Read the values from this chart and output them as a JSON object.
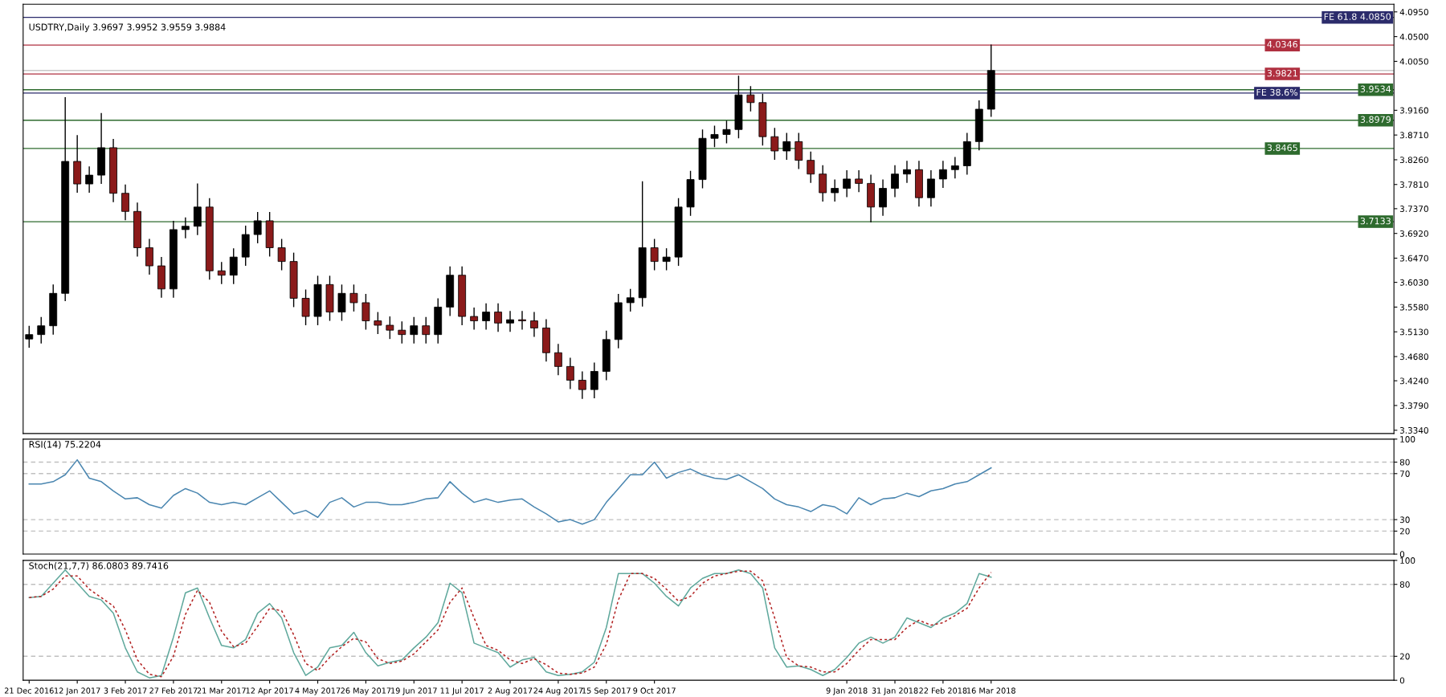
{
  "chart_data": [
    {
      "type": "candlestick",
      "title": "USDTRY,Daily 3.9697 3.9952 3.9559 3.9884",
      "tick_labels": "y",
      "categories": [
        null,
        null,
        null,
        null,
        null,
        null,
        null,
        null,
        null,
        null,
        null,
        null,
        null,
        null,
        null,
        null,
        null,
        null,
        null,
        null,
        null,
        null,
        null,
        null,
        null,
        null,
        null,
        null,
        null,
        null,
        null,
        null,
        null,
        null,
        null,
        null,
        null,
        null,
        null,
        null,
        null,
        null,
        null,
        null,
        null,
        null,
        null,
        null,
        null,
        null,
        null,
        null,
        null,
        null,
        null,
        null,
        null,
        null,
        null,
        null,
        null,
        null,
        null,
        null,
        null,
        null,
        null,
        null,
        null,
        null,
        null,
        null,
        null,
        null,
        null,
        null,
        null,
        null,
        null,
        null,
        null,
        null,
        null,
        null,
        null,
        null,
        null,
        null,
        null,
        null,
        null,
        null,
        null,
        null,
        null,
        null,
        null,
        null,
        null,
        null,
        null,
        null,
        null,
        null,
        null,
        null,
        null,
        null,
        null,
        null,
        null,
        null,
        null,
        null
      ],
      "ohlc": [
        [
          3.5,
          3.523,
          3.485,
          3.508
        ],
        [
          3.508,
          3.539,
          3.493,
          3.524
        ],
        [
          3.524,
          3.598,
          3.509,
          3.583
        ],
        [
          3.583,
          3.939,
          3.57,
          3.823
        ],
        [
          3.823,
          3.87,
          3.767,
          3.782
        ],
        [
          3.782,
          3.813,
          3.767,
          3.798
        ],
        [
          3.798,
          3.91,
          3.783,
          3.848
        ],
        [
          3.848,
          3.863,
          3.75,
          3.765
        ],
        [
          3.765,
          3.78,
          3.717,
          3.732
        ],
        [
          3.732,
          3.747,
          3.651,
          3.666
        ],
        [
          3.666,
          3.681,
          3.618,
          3.633
        ],
        [
          3.633,
          3.648,
          3.576,
          3.591
        ],
        [
          3.591,
          3.714,
          3.576,
          3.699
        ],
        [
          3.699,
          3.72,
          3.684,
          3.705
        ],
        [
          3.705,
          3.782,
          3.69,
          3.74
        ],
        [
          3.74,
          3.755,
          3.609,
          3.624
        ],
        [
          3.624,
          3.639,
          3.601,
          3.616
        ],
        [
          3.616,
          3.664,
          3.601,
          3.649
        ],
        [
          3.649,
          3.705,
          3.634,
          3.69
        ],
        [
          3.69,
          3.73,
          3.675,
          3.715
        ],
        [
          3.715,
          3.73,
          3.651,
          3.666
        ],
        [
          3.666,
          3.681,
          3.626,
          3.641
        ],
        [
          3.641,
          3.656,
          3.559,
          3.574
        ],
        [
          3.574,
          3.589,
          3.526,
          3.541
        ],
        [
          3.541,
          3.614,
          3.526,
          3.599
        ],
        [
          3.599,
          3.614,
          3.534,
          3.549
        ],
        [
          3.549,
          3.598,
          3.534,
          3.583
        ],
        [
          3.583,
          3.598,
          3.551,
          3.566
        ],
        [
          3.566,
          3.581,
          3.518,
          3.533
        ],
        [
          3.533,
          3.548,
          3.51,
          3.525
        ],
        [
          3.525,
          3.54,
          3.501,
          3.516
        ],
        [
          3.516,
          3.531,
          3.493,
          3.508
        ],
        [
          3.508,
          3.539,
          3.493,
          3.524
        ],
        [
          3.524,
          3.539,
          3.493,
          3.508
        ],
        [
          3.508,
          3.573,
          3.493,
          3.558
        ],
        [
          3.558,
          3.631,
          3.543,
          3.616
        ],
        [
          3.616,
          3.631,
          3.526,
          3.541
        ],
        [
          3.541,
          3.556,
          3.518,
          3.533
        ],
        [
          3.533,
          3.564,
          3.518,
          3.549
        ],
        [
          3.549,
          3.564,
          3.514,
          3.529
        ],
        [
          3.529,
          3.55,
          3.514,
          3.535
        ],
        [
          3.535,
          3.55,
          3.518,
          3.533
        ],
        [
          3.533,
          3.548,
          3.505,
          3.52
        ],
        [
          3.52,
          3.535,
          3.46,
          3.475
        ],
        [
          3.475,
          3.49,
          3.435,
          3.45
        ],
        [
          3.45,
          3.465,
          3.41,
          3.425
        ],
        [
          3.425,
          3.44,
          3.392,
          3.408
        ],
        [
          3.408,
          3.456,
          3.393,
          3.441
        ],
        [
          3.441,
          3.514,
          3.426,
          3.499
        ],
        [
          3.499,
          3.581,
          3.484,
          3.566
        ],
        [
          3.566,
          3.59,
          3.551,
          3.575
        ],
        [
          3.575,
          3.786,
          3.56,
          3.666
        ],
        [
          3.666,
          3.681,
          3.626,
          3.641
        ],
        [
          3.641,
          3.664,
          3.626,
          3.649
        ],
        [
          3.649,
          3.755,
          3.634,
          3.74
        ],
        [
          3.74,
          3.805,
          3.725,
          3.79
        ],
        [
          3.79,
          3.88,
          3.775,
          3.865
        ],
        [
          3.865,
          3.887,
          3.85,
          3.872
        ],
        [
          3.872,
          3.896,
          3.857,
          3.881
        ],
        [
          3.881,
          3.978,
          3.866,
          3.944
        ],
        [
          3.944,
          3.959,
          3.915,
          3.93
        ],
        [
          3.93,
          3.945,
          3.853,
          3.868
        ],
        [
          3.868,
          3.883,
          3.827,
          3.842
        ],
        [
          3.842,
          3.874,
          3.827,
          3.859
        ],
        [
          3.859,
          3.874,
          3.81,
          3.825
        ],
        [
          3.825,
          3.84,
          3.785,
          3.8
        ],
        [
          3.8,
          3.815,
          3.751,
          3.766
        ],
        [
          3.766,
          3.789,
          3.751,
          3.774
        ],
        [
          3.774,
          3.806,
          3.759,
          3.791
        ],
        [
          3.791,
          3.806,
          3.768,
          3.783
        ],
        [
          3.783,
          3.798,
          3.713,
          3.74
        ],
        [
          3.74,
          3.789,
          3.725,
          3.774
        ],
        [
          3.774,
          3.815,
          3.759,
          3.8
        ],
        [
          3.8,
          3.823,
          3.785,
          3.808
        ],
        [
          3.808,
          3.823,
          3.742,
          3.757
        ],
        [
          3.757,
          3.806,
          3.742,
          3.791
        ],
        [
          3.791,
          3.823,
          3.776,
          3.808
        ],
        [
          3.808,
          3.83,
          3.793,
          3.815
        ],
        [
          3.815,
          3.874,
          3.8,
          3.859
        ],
        [
          3.859,
          3.933,
          3.844,
          3.918
        ],
        [
          3.918,
          4.0346,
          3.905,
          3.9884
        ],
        null,
        null,
        null,
        null,
        null,
        null,
        null,
        null,
        null,
        null,
        null,
        null,
        null,
        null,
        null,
        null,
        null,
        null,
        null,
        null,
        null,
        null,
        null,
        null,
        null,
        null,
        null,
        null,
        null,
        null,
        null,
        null,
        null
      ],
      "colors": [
        "#000000",
        "#000000",
        "#000000",
        "#000000",
        "#8b1a1a",
        "#000000",
        "#000000",
        "#8b1a1a",
        "#8b1a1a",
        "#8b1a1a",
        "#8b1a1a",
        "#8b1a1a",
        "#000000",
        "#000000",
        "#000000",
        "#8b1a1a",
        "#8b1a1a",
        "#000000",
        "#000000",
        "#000000",
        "#8b1a1a",
        "#8b1a1a",
        "#8b1a1a",
        "#8b1a1a",
        "#000000",
        "#8b1a1a",
        "#000000",
        "#8b1a1a",
        "#8b1a1a",
        "#8b1a1a",
        "#8b1a1a",
        "#8b1a1a",
        "#000000",
        "#8b1a1a",
        "#000000",
        "#000000",
        "#8b1a1a",
        "#8b1a1a",
        "#000000",
        "#8b1a1a",
        "#000000",
        "#8b1a1a",
        "#8b1a1a",
        "#8b1a1a",
        "#8b1a1a",
        "#8b1a1a",
        "#8b1a1a",
        "#000000",
        "#000000",
        "#000000",
        "#000000",
        "#000000",
        "#8b1a1a",
        "#000000",
        "#000000",
        "#000000",
        "#000000",
        "#000000",
        "#000000",
        "#000000",
        "#8b1a1a",
        "#8b1a1a",
        "#8b1a1a",
        "#000000",
        "#8b1a1a",
        "#8b1a1a",
        "#8b1a1a",
        "#000000",
        "#000000",
        "#8b1a1a",
        "#8b1a1a",
        "#000000",
        "#000000",
        "#000000",
        "#8b1a1a",
        "#000000",
        "#000000",
        "#000000",
        "#000000",
        "#000000",
        "#000000",
        null,
        null,
        null,
        null,
        null,
        null,
        null,
        null,
        null,
        null,
        null,
        null,
        null,
        null,
        null,
        null,
        null,
        null,
        null,
        null,
        null,
        null,
        null,
        null,
        null,
        null,
        null,
        null,
        null,
        null,
        null,
        null,
        null
      ],
      "ylim": [
        3.328,
        4.109
      ],
      "yticks": [
        {
          "value": 4.095,
          "label": "4.0950"
        },
        {
          "value": 4.05,
          "label": "4.0500"
        },
        {
          "value": 4.005,
          "label": "4.0050"
        },
        {
          "value": 3.916,
          "label": "3.9160"
        },
        {
          "value": 3.871,
          "label": "3.8710"
        },
        {
          "value": 3.826,
          "label": "3.8260"
        },
        {
          "value": 3.781,
          "label": "3.7810"
        },
        {
          "value": 3.737,
          "label": "3.7370"
        },
        {
          "value": 3.692,
          "label": "3.6920"
        },
        {
          "value": 3.647,
          "label": "3.6470"
        },
        {
          "value": 3.603,
          "label": "3.6030"
        },
        {
          "value": 3.558,
          "label": "3.5580"
        },
        {
          "value": 3.513,
          "label": "3.5130"
        },
        {
          "value": 3.468,
          "label": "3.4680"
        },
        {
          "value": 3.424,
          "label": "3.4240"
        },
        {
          "value": 3.379,
          "label": "3.3790"
        },
        {
          "value": 3.334,
          "label": "3.3340"
        }
      ],
      "ref_lines": [
        {
          "axis": "y",
          "value": 4.085,
          "label": "FE 61.8 4.0850",
          "color": "#2b2b6b"
        },
        {
          "axis": "y",
          "value": 4.0346,
          "label": "4.0346",
          "color": "#b03040"
        },
        {
          "axis": "y",
          "value": 3.9884,
          "color": "#c8c8c8"
        },
        {
          "axis": "y",
          "value": 3.9821,
          "label": "3.9821",
          "color": "#b03040"
        },
        {
          "axis": "y",
          "value": 3.9534,
          "label": "3.9534",
          "color": "#2e6b2e"
        },
        {
          "axis": "y",
          "value": 3.9473,
          "label": "FE 38.6%",
          "color": "#2b2b6b"
        },
        {
          "axis": "y",
          "value": 3.8979,
          "label": "3.8979",
          "color": "#2e6b2e"
        },
        {
          "axis": "y",
          "value": 3.8465,
          "label": "3.8465",
          "color": "#2e6b2e"
        },
        {
          "axis": "y",
          "value": 3.7133,
          "label": "3.7133",
          "color": "#2e6b2e"
        }
      ]
    },
    {
      "type": "line",
      "title": "RSI(14) 75.2204",
      "tick_labels": "y",
      "categories": [
        null,
        null,
        null,
        null,
        null,
        null,
        null,
        null,
        null,
        null,
        null,
        null,
        null,
        null,
        null,
        null,
        null,
        null,
        null,
        null,
        null,
        null,
        null,
        null,
        null,
        null,
        null,
        null,
        null,
        null,
        null,
        null,
        null,
        null,
        null,
        null,
        null,
        null,
        null,
        null,
        null,
        null,
        null,
        null,
        null,
        null,
        null,
        null,
        null,
        null,
        null,
        null,
        null,
        null,
        null,
        null,
        null,
        null,
        null,
        null,
        null,
        null,
        null,
        null,
        null,
        null,
        null,
        null,
        null,
        null,
        null,
        null,
        null,
        null,
        null,
        null,
        null,
        null,
        null,
        null,
        null,
        null,
        null,
        null,
        null,
        null,
        null,
        null,
        null,
        null,
        null,
        null,
        null,
        null,
        null,
        null,
        null,
        null,
        null,
        null,
        null,
        null,
        null,
        null,
        null,
        null,
        null,
        null,
        null,
        null,
        null,
        null,
        null,
        null
      ],
      "series": [
        {
          "color": "#4a86b0",
          "values": [
            61,
            61,
            63,
            69,
            82,
            66,
            63,
            55,
            48,
            49,
            43,
            40,
            51,
            57,
            53,
            45,
            43,
            45,
            43,
            49,
            55,
            45,
            35,
            38,
            32,
            45,
            49,
            41,
            45,
            45,
            43,
            43,
            45,
            48,
            49,
            63,
            53,
            45,
            48,
            45,
            47,
            48,
            41,
            35,
            28,
            30,
            26,
            30,
            45,
            57,
            69,
            69,
            80,
            66,
            71,
            74,
            69,
            66,
            65,
            69,
            63,
            57,
            48,
            43,
            41,
            37,
            43,
            41,
            35,
            49,
            43,
            48,
            49,
            53,
            50,
            55,
            57,
            61,
            63,
            69,
            75,
            null,
            null,
            null,
            null,
            null,
            null,
            null,
            null,
            null,
            null,
            null,
            null,
            null,
            null,
            null,
            null,
            null,
            null,
            null,
            null,
            null,
            null,
            null,
            null,
            null,
            null,
            null,
            null,
            null,
            null,
            null,
            null,
            null
          ]
        }
      ],
      "ylim": [
        0,
        100
      ],
      "yticks": [
        0,
        20,
        30,
        70,
        80,
        100
      ],
      "ref_lines": [
        {
          "axis": "y",
          "value": 80,
          "color": "#c0c0c0",
          "line_style": "dashed"
        },
        {
          "axis": "y",
          "value": 70,
          "color": "#c0c0c0",
          "line_style": "dashed"
        },
        {
          "axis": "y",
          "value": 30,
          "color": "#c0c0c0",
          "line_style": "dashed"
        },
        {
          "axis": "y",
          "value": 20,
          "color": "#c0c0c0",
          "line_style": "dashed"
        }
      ]
    },
    {
      "type": "line",
      "title": "Stoch(21,7,7) 86.0803 89.7416",
      "categories": [
        "21 Dec 2016",
        null,
        null,
        null,
        "12 Jan 2017",
        null,
        null,
        null,
        "3 Feb 2017",
        null,
        null,
        null,
        "27 Feb 2017",
        null,
        null,
        null,
        "21 Mar 2017",
        null,
        null,
        null,
        "12 Apr 2017",
        null,
        null,
        null,
        "4 May 2017",
        null,
        null,
        null,
        "26 May 2017",
        null,
        null,
        null,
        "19 Jun 2017",
        null,
        null,
        null,
        "11 Jul 2017",
        null,
        null,
        null,
        "2 Aug 2017",
        null,
        null,
        null,
        "24 Aug 2017",
        null,
        null,
        null,
        "15 Sep 2017",
        null,
        null,
        null,
        "9 Oct 2017",
        null,
        null,
        null,
        null,
        null,
        null,
        null,
        null,
        null,
        null,
        null,
        null,
        null,
        null,
        null,
        "9 Jan 2018",
        null,
        null,
        null,
        "31 Jan 2018",
        null,
        null,
        null,
        "22 Feb 2018",
        null,
        null,
        null,
        "16 Mar 2018"
      ],
      "series": [
        {
          "color": "#5fa89c",
          "line_style": "solid",
          "values": [
            69,
            70,
            81,
            92,
            81,
            70,
            67,
            56,
            27,
            7,
            2,
            4,
            36,
            73,
            77,
            52,
            29,
            27,
            34,
            56,
            64,
            52,
            23,
            4,
            11,
            27,
            29,
            40,
            23,
            12,
            15,
            17,
            27,
            36,
            48,
            81,
            73,
            31,
            27,
            23,
            11,
            17,
            19,
            7,
            4,
            5,
            7,
            15,
            44,
            89,
            89,
            89,
            81,
            70,
            62,
            77,
            85,
            89,
            89,
            92,
            89,
            77,
            27,
            11,
            12,
            9,
            4,
            9,
            19,
            31,
            36,
            31,
            36,
            52,
            48,
            44,
            52,
            56,
            64,
            89,
            86
          ]
        },
        {
          "color": "#b22222",
          "line_style": "dotted",
          "values": [
            69,
            70,
            76,
            87,
            87,
            76,
            69,
            62,
            42,
            17,
            5,
            3,
            20,
            55,
            75,
            65,
            41,
            28,
            31,
            45,
            60,
            58,
            38,
            14,
            8,
            19,
            28,
            35,
            32,
            18,
            14,
            16,
            22,
            32,
            42,
            65,
            77,
            52,
            29,
            25,
            17,
            14,
            18,
            13,
            6,
            5,
            6,
            11,
            30,
            67,
            89,
            89,
            85,
            76,
            66,
            70,
            81,
            87,
            89,
            91,
            91,
            83,
            52,
            19,
            12,
            11,
            7,
            7,
            14,
            25,
            34,
            34,
            34,
            44,
            50,
            46,
            48,
            54,
            60,
            77,
            90
          ]
        }
      ],
      "ylim": [
        0,
        100
      ],
      "yticks": [
        0,
        20,
        80,
        100
      ],
      "ref_lines": [
        {
          "axis": "y",
          "value": 80,
          "color": "#c0c0c0",
          "line_style": "dashed"
        },
        {
          "axis": "y",
          "value": 20,
          "color": "#c0c0c0",
          "line_style": "dashed"
        }
      ]
    }
  ]
}
